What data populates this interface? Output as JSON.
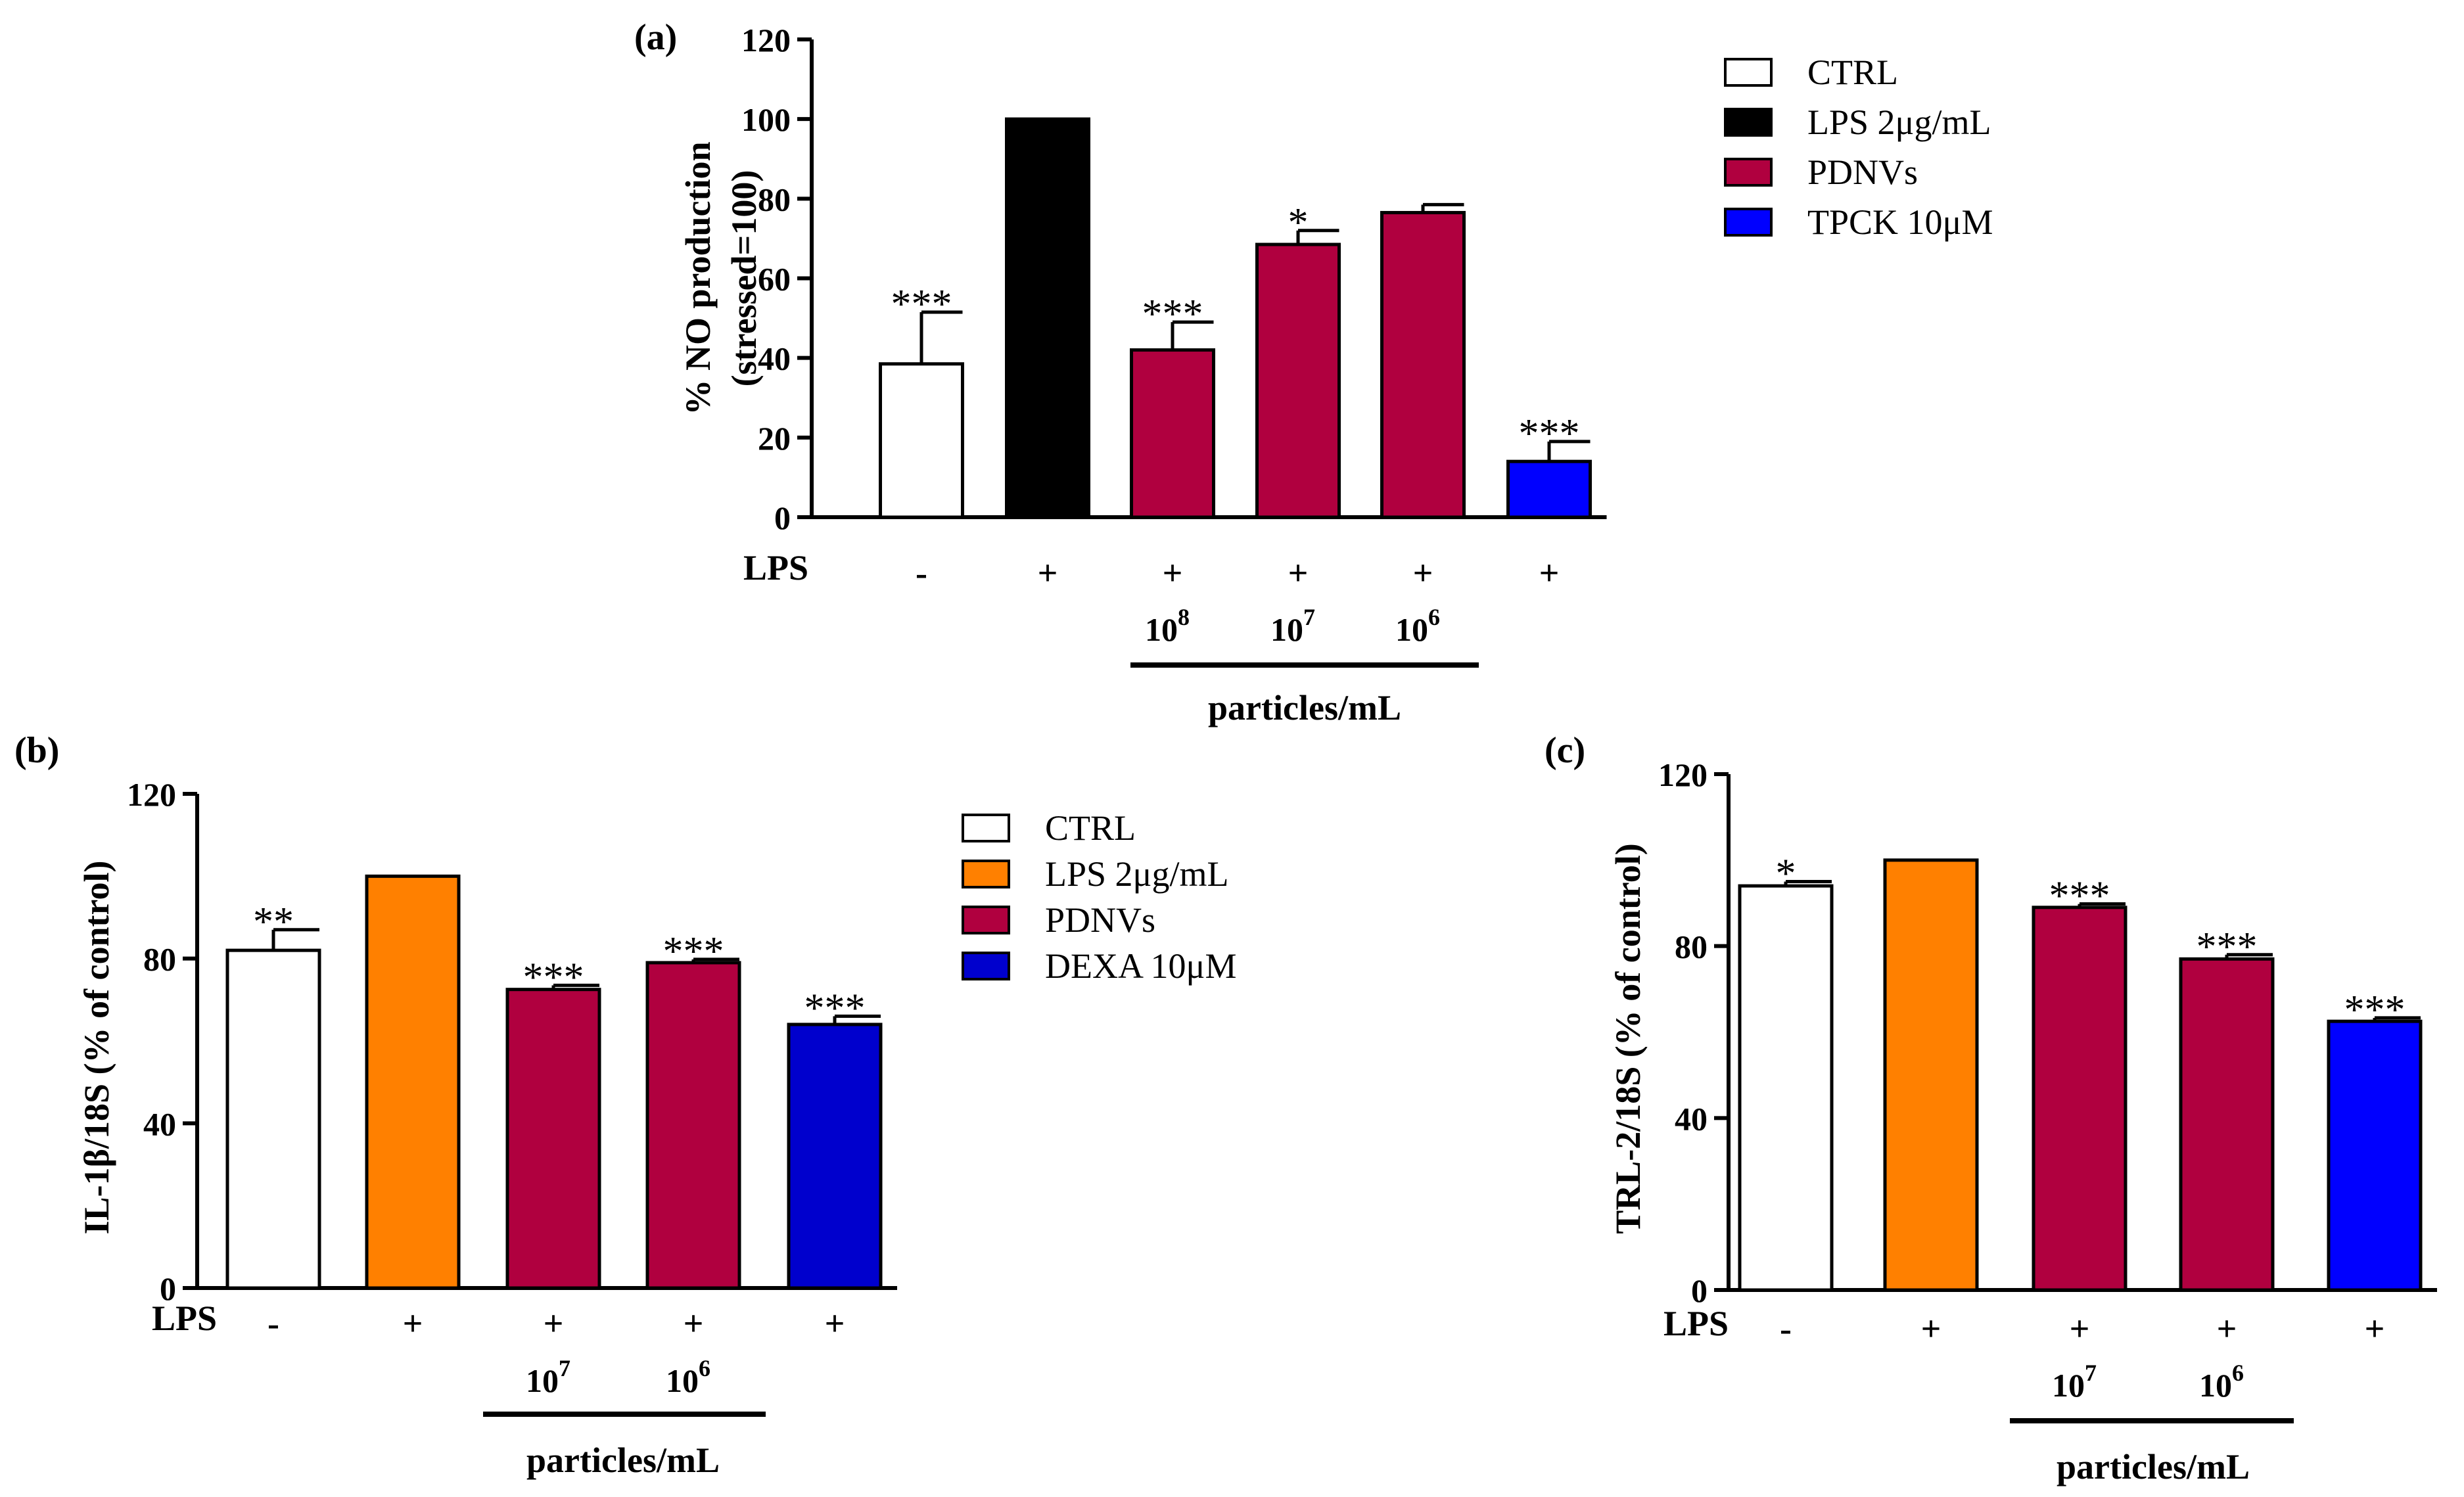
{
  "colors": {
    "ctrl": "#ffffff",
    "lps_black": "#000000",
    "lps_orange": "#ff8000",
    "pdnvs": "#b0003f",
    "tpck": "#0000ff",
    "dexa": "#0000cd",
    "dexa_c": "#0000ff"
  },
  "chart_data": [
    {
      "panel": "(a)",
      "type": "bar",
      "ylabel_line1": "% NO production",
      "ylabel_line2": "(stressed=100)",
      "ylim": [
        0,
        120
      ],
      "yticks": [
        "0",
        "20",
        "40",
        "60",
        "80",
        "100",
        "120"
      ],
      "row_label": "LPS",
      "unit_label": "particles/mL",
      "legend": [
        "CTRL",
        "LPS 2μg/mL",
        "PDNVs",
        "TPCK 10μM"
      ],
      "bars": [
        {
          "group": "CTRL",
          "value": 38.5,
          "error": 13,
          "sig": "***",
          "lps": "-",
          "dose": ""
        },
        {
          "group": "LPS 2μg/mL",
          "value": 100,
          "error": 0,
          "sig": "",
          "lps": "+",
          "dose": ""
        },
        {
          "group": "PDNVs",
          "value": 42,
          "error": 7,
          "sig": "***",
          "lps": "+",
          "dose": "10",
          "dose_exp": "8"
        },
        {
          "group": "PDNVs",
          "value": 68.5,
          "error": 3.5,
          "sig": "*",
          "lps": "+",
          "dose": "10",
          "dose_exp": "7"
        },
        {
          "group": "PDNVs",
          "value": 76.5,
          "error": 2,
          "sig": "",
          "lps": "+",
          "dose": "10",
          "dose_exp": "6"
        },
        {
          "group": "TPCK 10μM",
          "value": 14,
          "error": 5,
          "sig": "***",
          "lps": "+",
          "dose": ""
        }
      ]
    },
    {
      "panel": "(b)",
      "type": "bar",
      "ylabel": "IL-1β/18S (% of control)",
      "ylim": [
        0,
        120
      ],
      "yticks": [
        "0",
        "40",
        "80",
        "120"
      ],
      "row_label": "LPS",
      "unit_label": "particles/mL",
      "legend": [
        "CTRL",
        "LPS 2μg/mL",
        "PDNVs",
        "DEXA 10μM"
      ],
      "bars": [
        {
          "group": "CTRL",
          "value": 82,
          "error": 5,
          "sig": "**",
          "lps": "-",
          "dose": ""
        },
        {
          "group": "LPS 2μg/mL",
          "value": 100,
          "error": 0,
          "sig": "",
          "lps": "+",
          "dose": ""
        },
        {
          "group": "PDNVs",
          "value": 72.5,
          "error": 1,
          "sig": "***",
          "lps": "+",
          "dose": "10",
          "dose_exp": "7"
        },
        {
          "group": "PDNVs",
          "value": 79,
          "error": 0.8,
          "sig": "***",
          "lps": "+",
          "dose": "10",
          "dose_exp": "6"
        },
        {
          "group": "DEXA 10μM",
          "value": 64,
          "error": 2,
          "sig": "***",
          "lps": "+",
          "dose": ""
        }
      ]
    },
    {
      "panel": "(c)",
      "type": "bar",
      "ylabel": "TRL-2/18S (% of control)",
      "ylim": [
        0,
        120
      ],
      "yticks": [
        "0",
        "40",
        "80",
        "120"
      ],
      "row_label": "LPS",
      "unit_label": "particles/mL",
      "bars": [
        {
          "group": "CTRL",
          "value": 94,
          "error": 1,
          "sig": "*",
          "lps": "-",
          "dose": ""
        },
        {
          "group": "LPS 2μg/mL",
          "value": 100,
          "error": 0,
          "sig": "",
          "lps": "+",
          "dose": ""
        },
        {
          "group": "PDNVs",
          "value": 89,
          "error": 0.8,
          "sig": "***",
          "lps": "+",
          "dose": "10",
          "dose_exp": "7"
        },
        {
          "group": "PDNVs",
          "value": 77,
          "error": 1,
          "sig": "***",
          "lps": "+",
          "dose": "10",
          "dose_exp": "6"
        },
        {
          "group": "DEXA 10μM",
          "value": 62.5,
          "error": 0.8,
          "sig": "***",
          "lps": "+",
          "dose": ""
        }
      ]
    }
  ]
}
